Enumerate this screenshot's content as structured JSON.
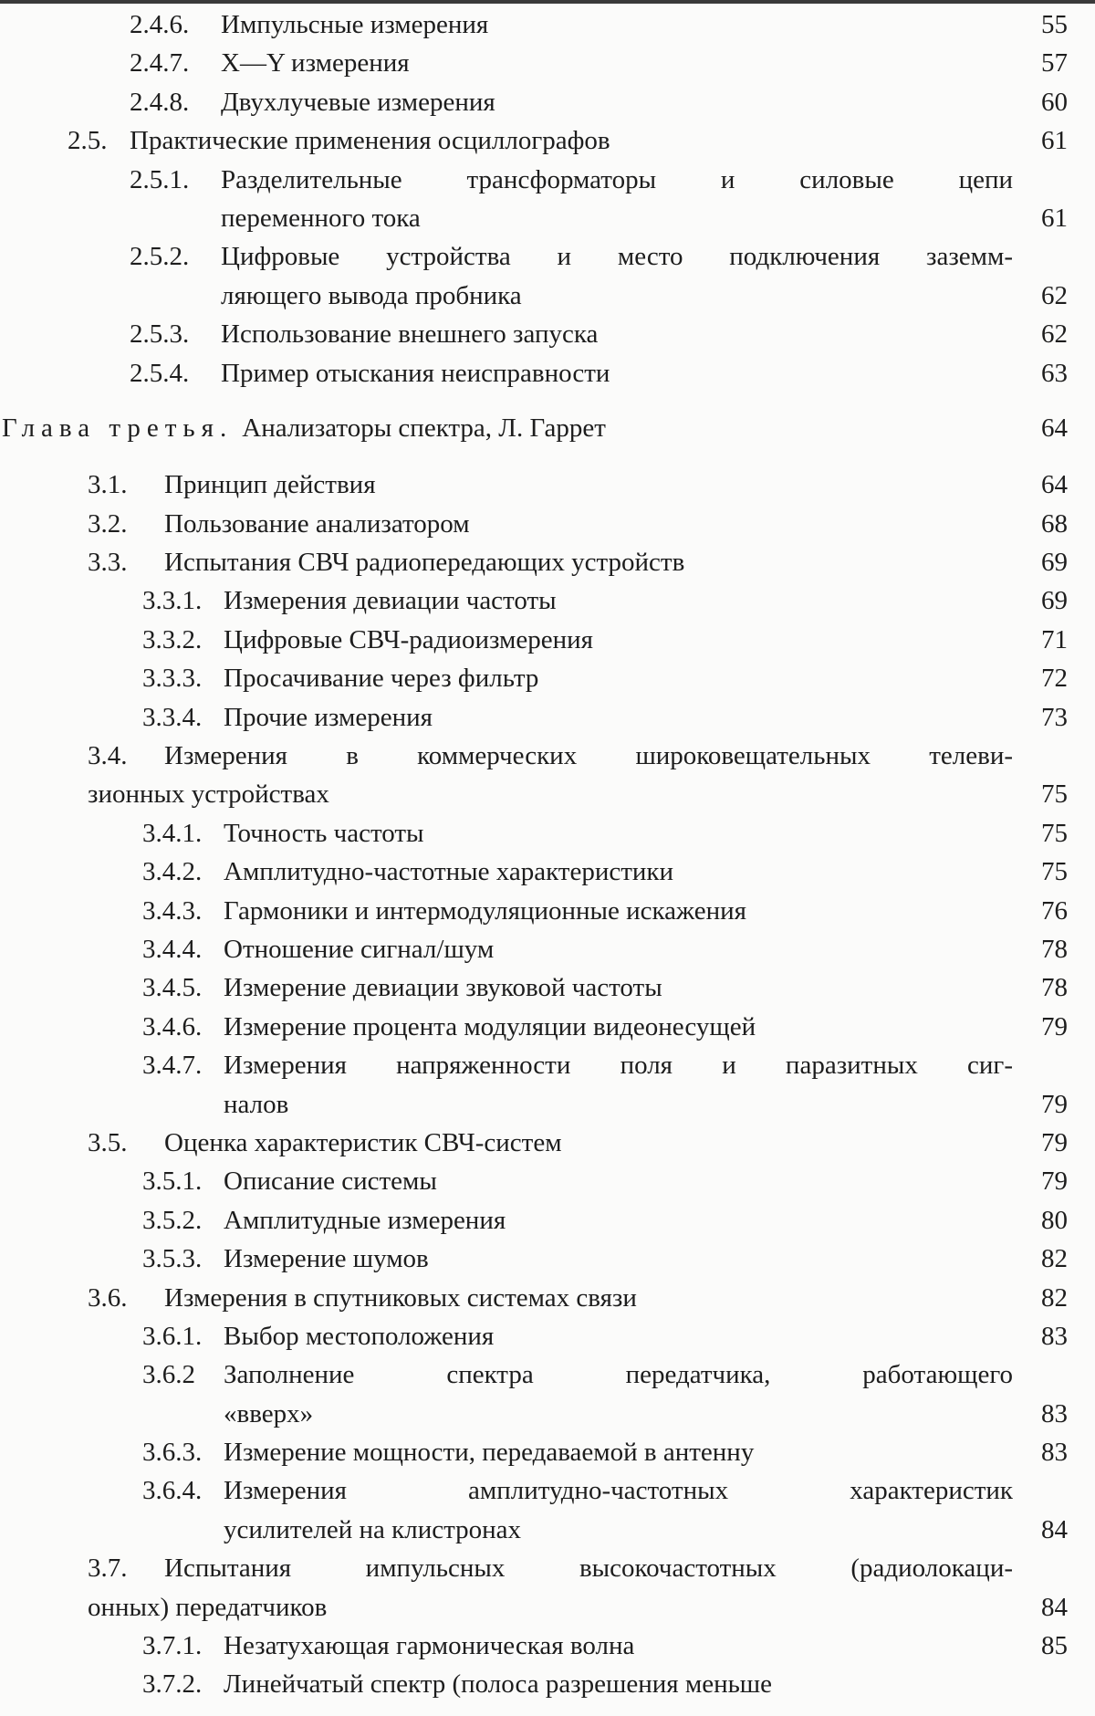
{
  "chapter": {
    "prefix": "Глава третья.",
    "title": "Анализаторы спектра, Л. Гаррет",
    "page": "64"
  },
  "entries_before": [
    {
      "num": "2.4.6.",
      "lines": [
        "Импульсные измерения"
      ],
      "page": "55",
      "level": 3
    },
    {
      "num": "2.4.7.",
      "lines": [
        "X—Y измерения"
      ],
      "page": "57",
      "level": 3
    },
    {
      "num": "2.4.8.",
      "lines": [
        "Двухлучевые измерения"
      ],
      "page": "60",
      "level": 3
    },
    {
      "num": "2.5.",
      "lines": [
        "Практические применения осциллографов"
      ],
      "page": "61",
      "level": 2
    },
    {
      "num": "2.5.1.",
      "lines": [
        "Разделительные трансформаторы и силовые цепи",
        "переменного тока"
      ],
      "page": "61",
      "level": 3
    },
    {
      "num": "2.5.2.",
      "lines": [
        "Цифровые устройства и место подключения заземм-",
        "ляющего вывода пробника"
      ],
      "page": "62",
      "level": 3
    },
    {
      "num": "2.5.3.",
      "lines": [
        "Использование внешнего запуска"
      ],
      "page": "62",
      "level": 3
    },
    {
      "num": "2.5.4.",
      "lines": [
        "Пример отыскания неисправности"
      ],
      "page": "63",
      "level": 3
    }
  ],
  "entries_after": [
    {
      "num": "3.1.",
      "lines": [
        "Принцип действия"
      ],
      "page": "64",
      "level": 2
    },
    {
      "num": "3.2.",
      "lines": [
        "Пользование анализатором"
      ],
      "page": "68",
      "level": 2
    },
    {
      "num": "3.3.",
      "lines": [
        "Испытания СВЧ радиопередающих устройств"
      ],
      "page": "69",
      "level": 2
    },
    {
      "num": "3.3.1.",
      "lines": [
        "Измерения девиации частоты"
      ],
      "page": "69",
      "level": 3
    },
    {
      "num": "3.3.2.",
      "lines": [
        "Цифровые СВЧ-радиоизмерения"
      ],
      "page": "71",
      "level": 3
    },
    {
      "num": "3.3.3.",
      "lines": [
        "Просачивание через фильтр"
      ],
      "page": "72",
      "level": 3
    },
    {
      "num": "3.3.4.",
      "lines": [
        "Прочие измерения"
      ],
      "page": "73",
      "level": 3
    },
    {
      "num": "3.4.",
      "lines": [
        "Измерения в коммерческих широковещательных телеви-",
        "зионных устройствах"
      ],
      "page": "75",
      "level": 2
    },
    {
      "num": "3.4.1.",
      "lines": [
        "Точность частоты"
      ],
      "page": "75",
      "level": 3
    },
    {
      "num": "3.4.2.",
      "lines": [
        "Амплитудно-частотные характеристики"
      ],
      "page": "75",
      "level": 3
    },
    {
      "num": "3.4.3.",
      "lines": [
        "Гармоники и интермодуляционные искажения"
      ],
      "page": "76",
      "level": 3
    },
    {
      "num": "3.4.4.",
      "lines": [
        "Отношение сигнал/шум"
      ],
      "page": "78",
      "level": 3
    },
    {
      "num": "3.4.5.",
      "lines": [
        "Измерение девиации звуковой частоты"
      ],
      "page": "78",
      "level": 3
    },
    {
      "num": "3.4.6.",
      "lines": [
        "Измерение процента модуляции видеонесущей"
      ],
      "page": "79",
      "level": 3
    },
    {
      "num": "3.4.7.",
      "lines": [
        "Измерения напряженности поля и паразитных сиг-",
        "налов"
      ],
      "page": "79",
      "level": 3
    },
    {
      "num": "3.5.",
      "lines": [
        "Оценка характеристик СВЧ-систем"
      ],
      "page": "79",
      "level": 2
    },
    {
      "num": "3.5.1.",
      "lines": [
        "Описание системы"
      ],
      "page": "79",
      "level": 3
    },
    {
      "num": "3.5.2.",
      "lines": [
        "Амплитудные измерения"
      ],
      "page": "80",
      "level": 3
    },
    {
      "num": "3.5.3.",
      "lines": [
        "Измерение шумов"
      ],
      "page": "82",
      "level": 3
    },
    {
      "num": "3.6.",
      "lines": [
        "Измерения в спутниковых системах связи"
      ],
      "page": "82",
      "level": 2
    },
    {
      "num": "3.6.1.",
      "lines": [
        "Выбор местоположения"
      ],
      "page": "83",
      "level": 3
    },
    {
      "num": "3.6.2",
      "lines": [
        "Заполнение спектра передатчика, работающего",
        "«вверх»"
      ],
      "page": "83",
      "level": 3
    },
    {
      "num": "3.6.3.",
      "lines": [
        "Измерение мощности, передаваемой в антенну"
      ],
      "page": "83",
      "level": 3
    },
    {
      "num": "3.6.4.",
      "lines": [
        "Измерения амплитудно-частотных характеристик",
        "усилителей на клистронах"
      ],
      "page": "84",
      "level": 3
    },
    {
      "num": "3.7.",
      "lines": [
        "Испытания импульсных высокочастотных (радиолокаци-",
        "онных) передатчиков"
      ],
      "page": "84",
      "level": 2
    },
    {
      "num": "3.7.1.",
      "lines": [
        "Незатухающая гармоническая волна"
      ],
      "page": "85",
      "level": 3
    },
    {
      "num": "3.7.2.",
      "lines": [
        "Линейчатый спектр (полоса разрешения меньше"
      ],
      "page": "",
      "level": 3
    }
  ]
}
